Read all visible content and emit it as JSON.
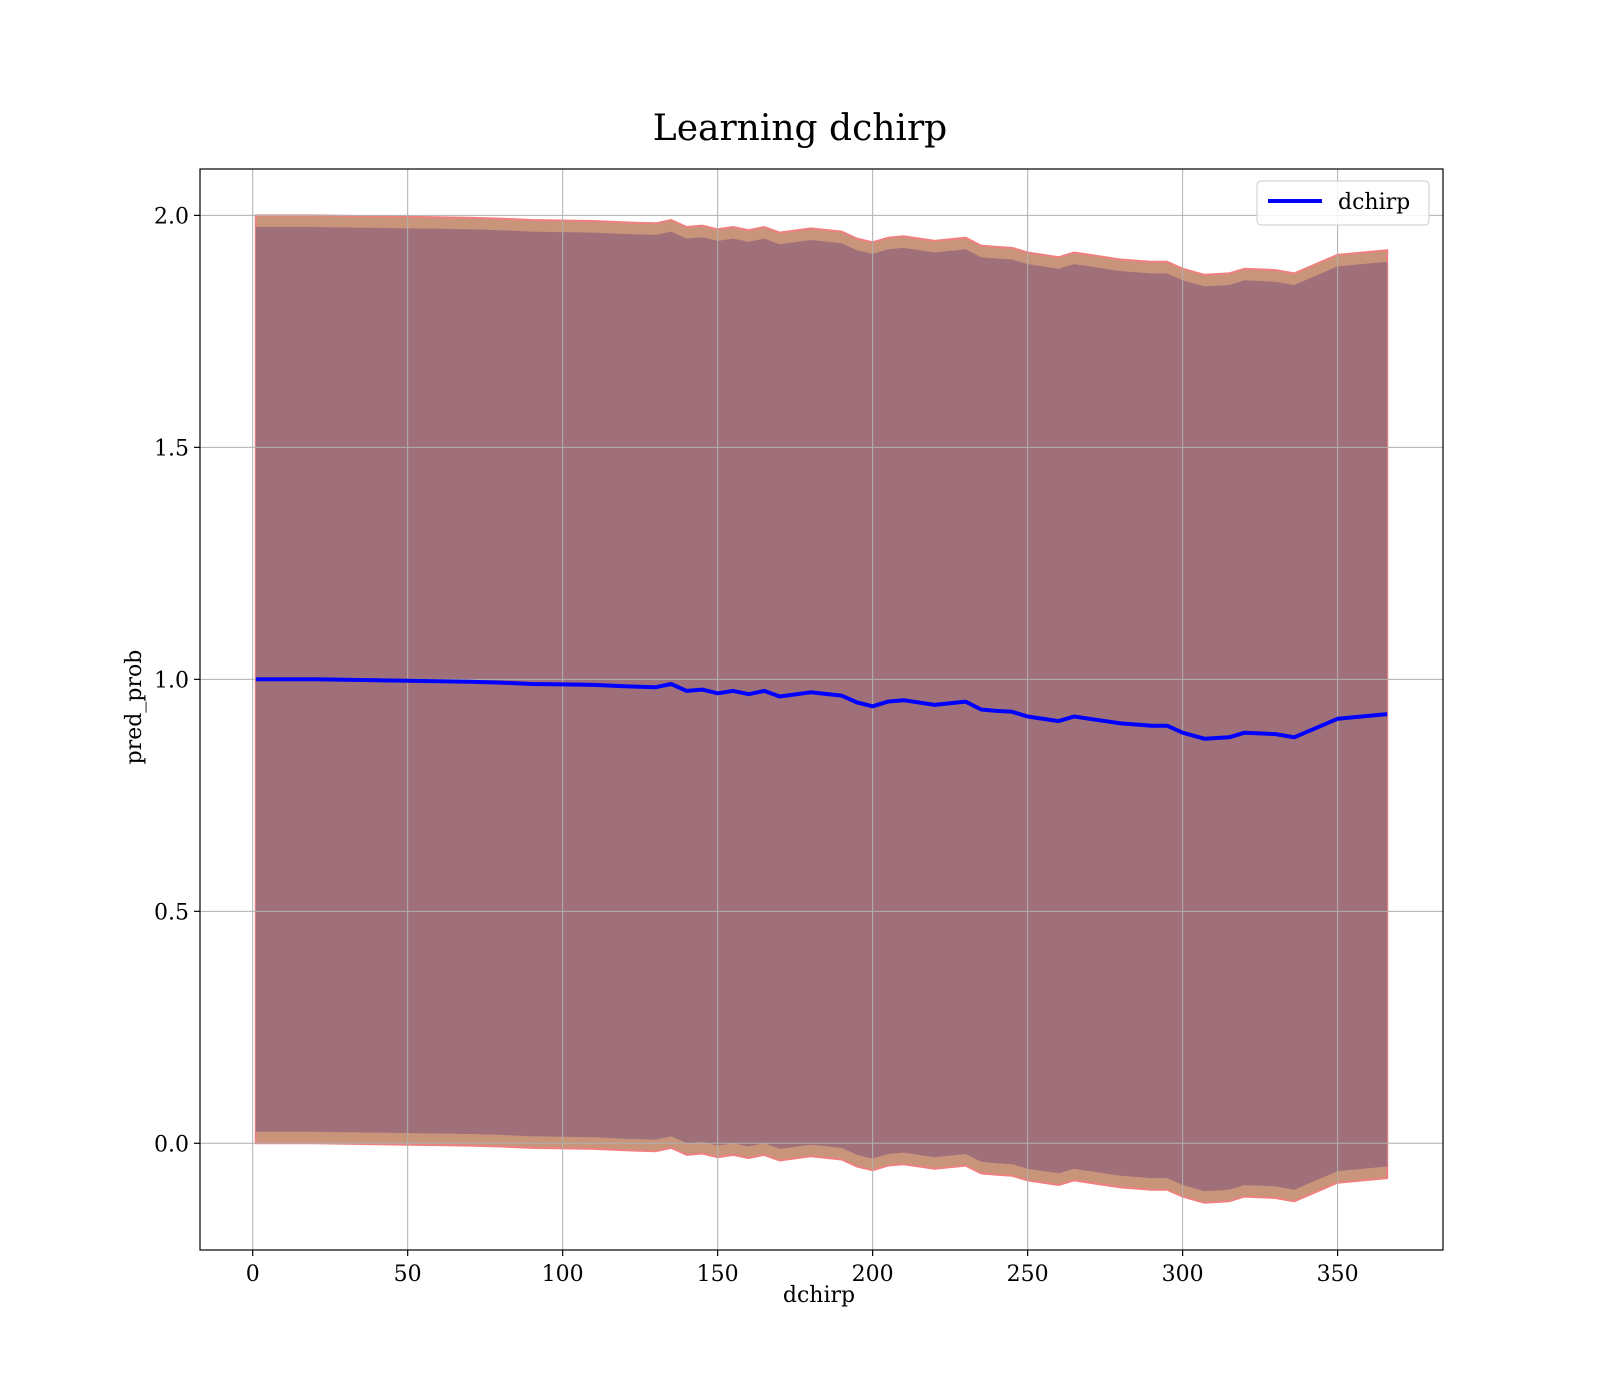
{
  "chart_data": {
    "type": "line",
    "title": "Learning dchirp",
    "xlabel": "dchirp",
    "ylabel": "pred_prob",
    "xlim": [
      -17,
      384
    ],
    "ylim": [
      -0.23,
      2.1
    ],
    "xticks": [
      0,
      50,
      100,
      150,
      200,
      250,
      300,
      350
    ],
    "xtick_labels": [
      "0",
      "50",
      "100",
      "150",
      "200",
      "250",
      "300",
      "350"
    ],
    "yticks": [
      0.0,
      0.5,
      1.0,
      1.5,
      2.0
    ],
    "ytick_labels": [
      "0.0",
      "0.5",
      "1.0",
      "1.5",
      "2.0"
    ],
    "grid": true,
    "legend_position": "top-right",
    "colors": {
      "line": "#0000ff",
      "outer_band": "#c8957a",
      "outer_band_edge": "#f08080",
      "inner_band": "#a0707a",
      "grid": "#b0b0b0"
    },
    "series": [
      {
        "name": "dchirp",
        "x": [
          1,
          10,
          20,
          30,
          40,
          50,
          60,
          70,
          80,
          90,
          100,
          110,
          120,
          130,
          135,
          140,
          145,
          150,
          155,
          160,
          165,
          170,
          180,
          190,
          195,
          200,
          205,
          210,
          220,
          230,
          235,
          240,
          245,
          250,
          260,
          265,
          270,
          280,
          290,
          295,
          300,
          307,
          315,
          320,
          330,
          336,
          350,
          366
        ],
        "y": [
          1.0,
          1.0,
          1.0,
          0.999,
          0.998,
          0.997,
          0.996,
          0.995,
          0.993,
          0.99,
          0.989,
          0.988,
          0.985,
          0.983,
          0.99,
          0.975,
          0.978,
          0.97,
          0.975,
          0.968,
          0.975,
          0.963,
          0.972,
          0.965,
          0.95,
          0.942,
          0.952,
          0.955,
          0.945,
          0.952,
          0.935,
          0.932,
          0.93,
          0.92,
          0.91,
          0.92,
          0.915,
          0.905,
          0.9,
          0.9,
          0.885,
          0.872,
          0.875,
          0.885,
          0.882,
          0.875,
          0.915,
          0.925
        ]
      }
    ],
    "band_outer_halfwidth": [
      1.0,
      1.0,
      1.0,
      1.0,
      1.0,
      1.0,
      1.0,
      1.0,
      1.0,
      1.0,
      1.0,
      1.0,
      1.0,
      1.0,
      1.0,
      1.0,
      1.0,
      1.0,
      1.0,
      1.0,
      1.0,
      1.0,
      1.0,
      1.0,
      1.0,
      1.0,
      1.0,
      1.0,
      1.0,
      1.0,
      1.0,
      1.0,
      1.0,
      1.0,
      1.0,
      1.0,
      1.0,
      1.0,
      1.0,
      1.0,
      1.0,
      1.0,
      1.0,
      1.0,
      1.0,
      1.0,
      1.0,
      1.0
    ],
    "band_inner_halfwidth": [
      0.975,
      0.975,
      0.975,
      0.975,
      0.975,
      0.975,
      0.975,
      0.975,
      0.975,
      0.975,
      0.975,
      0.975,
      0.975,
      0.975,
      0.975,
      0.975,
      0.975,
      0.975,
      0.975,
      0.975,
      0.975,
      0.975,
      0.975,
      0.975,
      0.975,
      0.975,
      0.975,
      0.975,
      0.975,
      0.975,
      0.975,
      0.975,
      0.975,
      0.975,
      0.975,
      0.975,
      0.975,
      0.975,
      0.975,
      0.975,
      0.975,
      0.975,
      0.975,
      0.975,
      0.975,
      0.975,
      0.975,
      0.975
    ]
  }
}
